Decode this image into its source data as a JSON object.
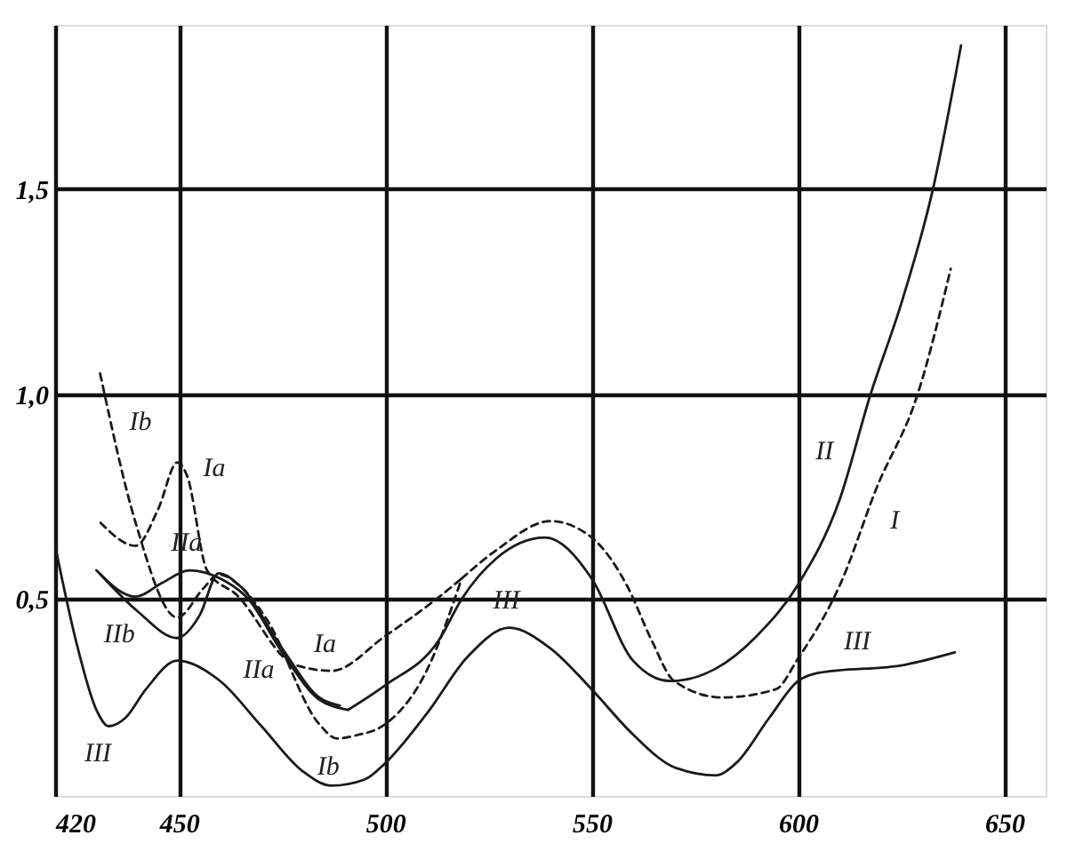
{
  "chart_data": {
    "type": "line",
    "xlim": [
      420,
      660
    ],
    "ylim": [
      0.02,
      1.9
    ],
    "xticks": [
      420,
      450,
      500,
      550,
      600,
      650
    ],
    "yticks": [
      {
        "value": 0.5,
        "label": "0,5"
      },
      {
        "value": 1.0,
        "label": "1,0"
      },
      {
        "value": 1.5,
        "label": "1,5"
      }
    ],
    "grid": true,
    "marker": "none",
    "series": [
      {
        "color": "#1a1a1a",
        "line_style": "solid",
        "x": [
          420,
          425,
          430,
          433,
          437,
          442,
          449.6,
          460,
          470,
          480,
          487,
          495,
          500,
          510,
          520,
          530,
          540,
          550,
          560,
          570,
          580,
          585,
          593,
          600,
          605,
          626,
          638
        ],
        "values": [
          0.63,
          0.4,
          0.23,
          0.19,
          0.21,
          0.28,
          0.35,
          0.3,
          0.19,
          0.08,
          0.045,
          0.06,
          0.1,
          0.22,
          0.36,
          0.43,
          0.38,
          0.28,
          0.17,
          0.09,
          0.07,
          0.1,
          0.21,
          0.3,
          0.32,
          0.34,
          0.37
        ]
      },
      {
        "color": "#1a1a1a",
        "line_style": "solid",
        "x": [
          430,
          439.5,
          446,
          452.5,
          460,
          466.8,
          475,
          484,
          491
        ],
        "values": [
          0.57,
          0.506,
          0.54,
          0.57,
          0.55,
          0.5,
          0.37,
          0.255,
          0.23
        ]
      },
      {
        "color": "#1a1a1a",
        "line_style": "solid",
        "x": [
          431,
          440,
          449.5,
          455,
          459.6,
          465,
          475,
          484,
          489
        ],
        "values": [
          0.56,
          0.47,
          0.405,
          0.46,
          0.563,
          0.53,
          0.38,
          0.26,
          0.24
        ]
      },
      {
        "color": "#1a1a1a",
        "line_style": "solid",
        "x": [
          491,
          500,
          513,
          518.5,
          527,
          538.7,
          550,
          560,
          569,
          580,
          590,
          600,
          610,
          617.6,
          625,
          632.7,
          639.5
        ],
        "values": [
          0.23,
          0.29,
          0.4,
          0.5,
          0.6,
          0.65,
          0.55,
          0.35,
          0.3,
          0.33,
          0.41,
          0.535,
          0.74,
          1.0,
          1.22,
          1.5,
          1.85
        ]
      },
      {
        "color": "#1a1a1a",
        "line_style": "dashed",
        "x": [
          431,
          439.5,
          445,
          449.6,
          452,
          456.8,
          464,
          478,
          487,
          500,
          513,
          518.5
        ],
        "values": [
          0.686,
          0.63,
          0.72,
          0.833,
          0.8,
          0.57,
          0.51,
          0.34,
          0.325,
          0.41,
          0.505,
          0.55
        ]
      },
      {
        "color": "#1a1a1a",
        "line_style": "dashed",
        "x": [
          430.9,
          439.5,
          449.6,
          456,
          459.6,
          465,
          471,
          484,
          488.3,
          492.6,
          500,
          510,
          518.5
        ],
        "values": [
          1.05,
          0.686,
          0.455,
          0.527,
          0.56,
          0.53,
          0.455,
          0.195,
          0.16,
          0.167,
          0.195,
          0.325,
          0.55
        ]
      },
      {
        "color": "#1a1a1a",
        "line_style": "dashed",
        "x": [
          518.5,
          527,
          540,
          550,
          558.7,
          564.5,
          570,
          581.6,
          594.6,
          600,
          610.4,
          619,
          629,
          637
        ],
        "values": [
          0.55,
          0.62,
          0.69,
          0.65,
          0.53,
          0.4,
          0.3,
          0.26,
          0.28,
          0.355,
          0.54,
          0.77,
          1.0,
          1.305
        ]
      }
    ],
    "annotations": [
      {
        "text": "Ib",
        "x": 434,
        "y": 0.919
      },
      {
        "text": "Ia",
        "x": 452,
        "y": 0.8
      },
      {
        "text": "IIa",
        "x": 452.5,
        "y": 0.57
      },
      {
        "text": "IIb",
        "x": 440,
        "y": 0.47
      },
      {
        "text": "III",
        "x": 433,
        "y": 0.19
      },
      {
        "text": "IIa",
        "x": 475,
        "y": 0.37
      },
      {
        "text": "Ia",
        "x": 487,
        "y": 0.325
      },
      {
        "text": "Ib",
        "x": 488.3,
        "y": 0.16
      },
      {
        "text": "III",
        "x": 530,
        "y": 0.43
      },
      {
        "text": "II",
        "x": 613,
        "y": 0.843
      },
      {
        "text": "I",
        "x": 617,
        "y": 0.717
      },
      {
        "text": "III",
        "x": 615,
        "y": 0.33
      }
    ]
  }
}
